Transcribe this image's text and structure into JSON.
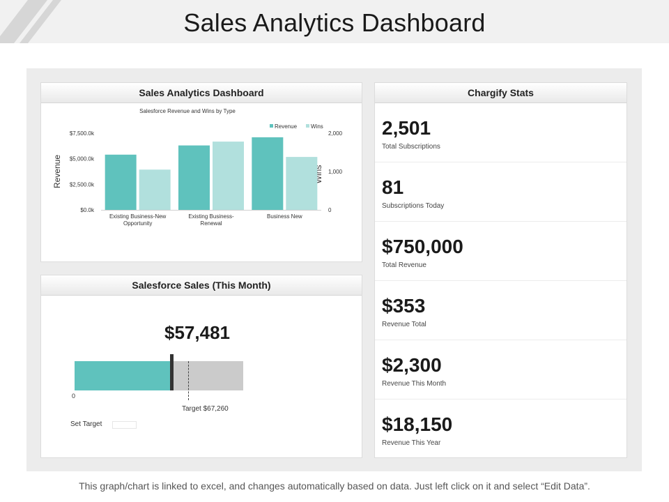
{
  "page": {
    "title": "Sales Analytics Dashboard",
    "footer": "This graph/chart is linked to excel, and changes automatically based on data. Just left click on it and select “Edit Data”."
  },
  "colors": {
    "revenue": "#5fc2bd",
    "wins": "#b1e0dd",
    "bullet_track": "#cbcbcb",
    "panel_bg": "#ececec"
  },
  "chart_card": {
    "header": "Sales Analytics Dashboard"
  },
  "chart_data": {
    "type": "bar",
    "title": "Salesforce Revenue and Wins by Type",
    "categories": [
      [
        "Existing Business-New",
        "Opportunity"
      ],
      [
        "Existing Business-",
        "Renewal"
      ],
      [
        "Business New"
      ]
    ],
    "series": [
      {
        "name": "Revenue",
        "axis": "left",
        "values": [
          5400,
          6300,
          7100
        ]
      },
      {
        "name": "Wins",
        "axis": "right",
        "values": [
          1050,
          1780,
          1380
        ]
      }
    ],
    "ylabel": "Revenue",
    "y2label": "Wins",
    "ylim": [
      0,
      7500
    ],
    "y2lim": [
      0,
      2000
    ],
    "yticks": [
      "$0.0k",
      "$2,500.0k",
      "$5,000.0k",
      "$7,500.0k"
    ],
    "y2ticks": [
      "0",
      "1,000",
      "2,000"
    ],
    "legend": "top-right"
  },
  "sales_card": {
    "header": "Salesforce Sales (This Month)",
    "value_text": "$57,481",
    "value": 57481,
    "target": 67260,
    "max": 100000,
    "zero_label": "0",
    "target_label": "Target $67,260",
    "set_target_label": "Set Target"
  },
  "stats_card": {
    "header": "Chargify Stats",
    "items": [
      {
        "value": "2,501",
        "label": "Total Subscriptions"
      },
      {
        "value": "81",
        "label": "Subscriptions Today"
      },
      {
        "value": "$750,000",
        "label": "Total Revenue"
      },
      {
        "value": "$353",
        "label": "Revenue Total"
      },
      {
        "value": "$2,300",
        "label": "Revenue This Month"
      },
      {
        "value": "$18,150",
        "label": "Revenue This Year"
      }
    ]
  }
}
